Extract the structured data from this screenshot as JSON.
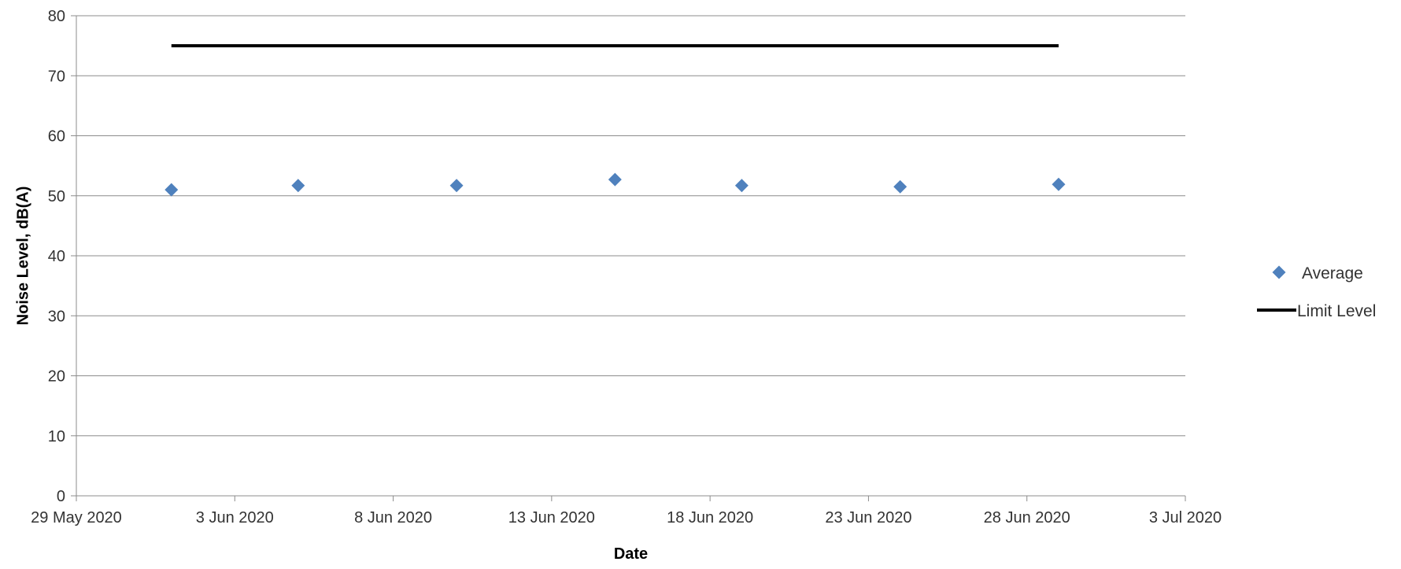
{
  "chart_data": {
    "type": "scatter",
    "title": "",
    "xlabel": "Date",
    "ylabel": "Noise Level, dB(A)",
    "x_axis": {
      "type": "date",
      "min": "2020-05-29",
      "max": "2020-07-03",
      "tick_labels": [
        "29 May 2020",
        "3 Jun 2020",
        "8 Jun 2020",
        "13 Jun 2020",
        "18 Jun 2020",
        "23 Jun 2020",
        "28 Jun 2020",
        "3 Jul 2020"
      ],
      "tick_dates": [
        "2020-05-29",
        "2020-06-03",
        "2020-06-08",
        "2020-06-13",
        "2020-06-18",
        "2020-06-23",
        "2020-06-28",
        "2020-07-03"
      ]
    },
    "y_axis": {
      "min": 0,
      "max": 80,
      "tick_labels": [
        "0",
        "10",
        "20",
        "30",
        "40",
        "50",
        "60",
        "70",
        "80"
      ],
      "tick_values": [
        0,
        10,
        20,
        30,
        40,
        50,
        60,
        70,
        80
      ]
    },
    "grid": "horizontal major gridlines",
    "legend_position": "right",
    "series": [
      {
        "name": "Average",
        "type": "scatter",
        "marker": "diamond",
        "color": "#4F81BD",
        "x": [
          "2020-06-01",
          "2020-06-05",
          "2020-06-10",
          "2020-06-15",
          "2020-06-19",
          "2020-06-24",
          "2020-06-29"
        ],
        "y": [
          51.0,
          51.7,
          51.7,
          52.7,
          51.7,
          51.5,
          51.9
        ]
      },
      {
        "name": "Limit Level",
        "type": "line",
        "color": "#000000",
        "x": [
          "2020-06-01",
          "2020-06-29"
        ],
        "y": [
          75,
          75
        ]
      }
    ]
  }
}
